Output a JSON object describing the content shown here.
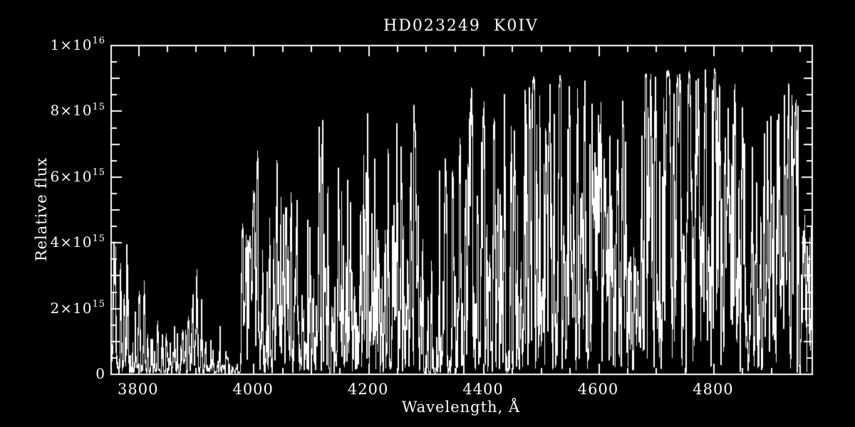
{
  "colors": {
    "background": "#000000",
    "foreground": "#ffffff"
  },
  "chart_data": {
    "type": "line",
    "subtype": "stellar-spectrum",
    "title": "HD023249  K0IV",
    "xlabel": "Wavelength, Å",
    "ylabel": "Relative flux",
    "xlim": [
      3752,
      4971
    ],
    "ylim": [
      0,
      10
    ],
    "flux_unit": 1000000000000000.0,
    "grid": false,
    "legend": null,
    "x_major_ticks": [
      {
        "value": 3800,
        "label": "3800"
      },
      {
        "value": 4000,
        "label": "4000"
      },
      {
        "value": 4200,
        "label": "4200"
      },
      {
        "value": 4400,
        "label": "4400"
      },
      {
        "value": 4600,
        "label": "4600"
      },
      {
        "value": 4800,
        "label": "4800"
      }
    ],
    "x_minor_step": 50,
    "y_major_ticks": [
      {
        "value": 0,
        "mantissa": "0",
        "exponent": ""
      },
      {
        "value": 2,
        "mantissa": "2×10",
        "exponent": "15"
      },
      {
        "value": 4,
        "mantissa": "4×10",
        "exponent": "15"
      },
      {
        "value": 6,
        "mantissa": "6×10",
        "exponent": "15"
      },
      {
        "value": 8,
        "mantissa": "8×10",
        "exponent": "15"
      },
      {
        "value": 10,
        "mantissa": "1×10",
        "exponent": "16"
      }
    ],
    "y_minor_step": 0.5,
    "continuum": [
      [
        3752,
        6.05
      ],
      [
        3770,
        5.95
      ],
      [
        3800,
        5.85
      ],
      [
        3830,
        5.35
      ],
      [
        3860,
        5.6
      ],
      [
        3890,
        5.5
      ],
      [
        3920,
        5.35
      ],
      [
        3945,
        5.4
      ],
      [
        3975,
        5.9
      ],
      [
        4000,
        7.0
      ],
      [
        4050,
        7.5
      ],
      [
        4100,
        7.8
      ],
      [
        4150,
        7.95
      ],
      [
        4200,
        8.1
      ],
      [
        4250,
        8.3
      ],
      [
        4300,
        8.5
      ],
      [
        4350,
        8.7
      ],
      [
        4400,
        8.85
      ],
      [
        4450,
        9.0
      ],
      [
        4500,
        9.1
      ],
      [
        4560,
        9.2
      ],
      [
        4620,
        9.15
      ],
      [
        4700,
        9.25
      ],
      [
        4760,
        9.25
      ],
      [
        4800,
        9.3
      ],
      [
        4845,
        9.05
      ],
      [
        4880,
        9.15
      ],
      [
        4920,
        9.2
      ],
      [
        4970,
        9.2
      ]
    ],
    "absorption_features": [
      [
        3832.0,
        6.0,
        0.5
      ],
      [
        3860.0,
        3.5,
        0.3
      ],
      [
        3888.0,
        3.5,
        0.35
      ],
      [
        3906.0,
        3.0,
        0.25
      ],
      [
        3933.7,
        5.0,
        0.93
      ],
      [
        3933.7,
        13.0,
        0.45
      ],
      [
        3968.5,
        5.0,
        0.92
      ],
      [
        3968.5,
        12.0,
        0.42
      ],
      [
        4045.8,
        1.2,
        0.82
      ],
      [
        4063.6,
        1.1,
        0.78
      ],
      [
        4071.7,
        1.0,
        0.72
      ],
      [
        4077.7,
        1.0,
        0.68
      ],
      [
        4101.7,
        1.6,
        0.85
      ],
      [
        4101.7,
        4.5,
        0.28
      ],
      [
        4132.0,
        0.9,
        0.6
      ],
      [
        4143.9,
        1.0,
        0.65
      ],
      [
        4167.0,
        0.9,
        0.5
      ],
      [
        4226.7,
        1.4,
        0.88
      ],
      [
        4254.3,
        1.0,
        0.65
      ],
      [
        4271.8,
        1.1,
        0.68
      ],
      [
        4300.0,
        5.5,
        0.32
      ],
      [
        4307.9,
        1.3,
        0.75
      ],
      [
        4315.0,
        1.2,
        0.6
      ],
      [
        4325.8,
        1.2,
        0.75
      ],
      [
        4340.5,
        1.6,
        0.85
      ],
      [
        4340.5,
        4.5,
        0.25
      ],
      [
        4383.5,
        1.3,
        0.8
      ],
      [
        4404.8,
        1.2,
        0.75
      ],
      [
        4415.1,
        1.1,
        0.65
      ],
      [
        4430.0,
        2.5,
        0.2
      ],
      [
        4461.7,
        1.0,
        0.55
      ],
      [
        4528.6,
        1.2,
        0.68
      ],
      [
        4554.0,
        1.0,
        0.5
      ],
      [
        4630.0,
        8.0,
        0.22
      ],
      [
        4668.0,
        1.2,
        0.6
      ],
      [
        4703.0,
        1.1,
        0.5
      ],
      [
        4762.0,
        1.0,
        0.45
      ],
      [
        4857.0,
        9.0,
        0.12
      ],
      [
        4861.3,
        1.6,
        0.82
      ],
      [
        4861.3,
        4.5,
        0.22
      ],
      [
        4891.5,
        1.1,
        0.6
      ],
      [
        4920.5,
        1.2,
        0.6
      ],
      [
        4957.6,
        1.1,
        0.55
      ]
    ],
    "line_forest_bands": [
      [
        3752,
        3980,
        1.4,
        0.5,
        0.4,
        1.5
      ],
      [
        3980,
        4260,
        1.1,
        0.45,
        0.3,
        1.1
      ],
      [
        4260,
        4470,
        1.05,
        0.45,
        0.3,
        1.1
      ],
      [
        4470,
        4971,
        0.9,
        0.35,
        0.3,
        1.0
      ],
      [
        4295,
        4320,
        1.8,
        0.5,
        0.4,
        1.2
      ]
    ],
    "sample_step": 0.3,
    "seed": 11
  }
}
